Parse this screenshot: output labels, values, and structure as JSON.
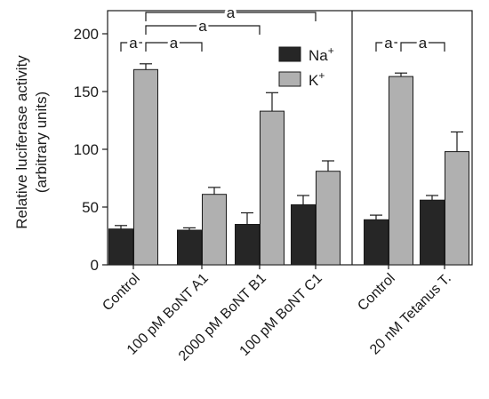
{
  "chart_data": {
    "type": "bar",
    "ylabel": [
      "Relative luciferase activity",
      "(arbitrary units)"
    ],
    "ylim": [
      0,
      220
    ],
    "yticks": [
      0,
      50,
      100,
      150,
      200
    ],
    "legend": {
      "placement": "top-center",
      "entries": [
        {
          "base": "Na",
          "sup": "+",
          "color": "#262626"
        },
        {
          "base": "K",
          "sup": "+",
          "color": "#b0b0b0"
        }
      ]
    },
    "series": [
      {
        "name": "Na+",
        "color": "#262626"
      },
      {
        "name": "K+",
        "color": "#b0b0b0"
      }
    ],
    "panels": [
      {
        "categories": [
          "Control",
          "100 pM BoNT A1",
          "2000 pM BoNT B1",
          "100 pM BoNT C1"
        ],
        "values": {
          "Na+": [
            31,
            30,
            35,
            52
          ],
          "K+": [
            169,
            61,
            133,
            81
          ]
        },
        "errors": {
          "Na+": [
            3,
            2,
            10,
            8
          ],
          "K+": [
            5,
            6,
            16,
            9
          ]
        },
        "significance": [
          {
            "from": 0,
            "to": 1,
            "label": "a"
          },
          {
            "from": 0,
            "to": 2,
            "label": "a"
          },
          {
            "from": 0,
            "to": 3,
            "label": "a"
          }
        ]
      },
      {
        "categories": [
          "Control",
          "20 nM Tetanus T."
        ],
        "values": {
          "Na+": [
            39,
            56
          ],
          "K+": [
            163,
            98
          ]
        },
        "errors": {
          "Na+": [
            4,
            4
          ],
          "K+": [
            3,
            17
          ]
        },
        "significance": [
          {
            "from": 0,
            "to": 1,
            "label": "a"
          }
        ]
      }
    ]
  }
}
